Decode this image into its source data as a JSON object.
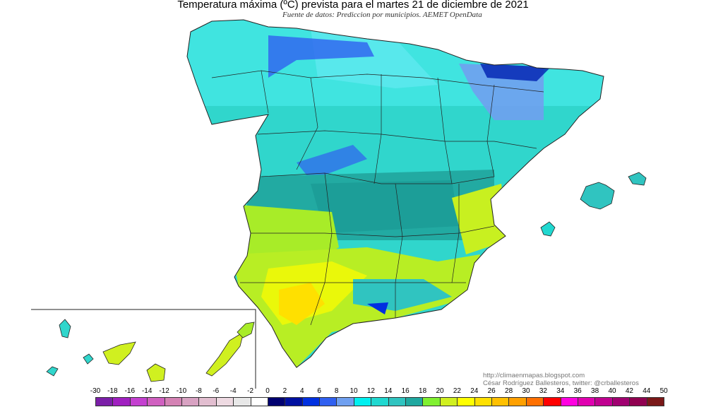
{
  "title": "Temperatura máxima (ºC) prevista para el martes 21 de diciembre de 2021",
  "subtitle": "Fuente de datos: Prediccion por municipios. AEMET OpenData",
  "credits": {
    "url": "http://climaenmapas.blogspot.com",
    "author": "César Rodríguez Ballesteros, twitter: @crballesteros"
  },
  "legend": {
    "labels": [
      "-30",
      "-18",
      "-16",
      "-14",
      "-12",
      "-10",
      "-8",
      "-6",
      "-4",
      "-2",
      "0",
      "2",
      "4",
      "6",
      "8",
      "10",
      "12",
      "14",
      "16",
      "18",
      "20",
      "22",
      "24",
      "26",
      "28",
      "30",
      "32",
      "34",
      "36",
      "38",
      "40",
      "42",
      "44",
      "50"
    ],
    "colors": [
      "#7b1fa8",
      "#a020c0",
      "#c440d0",
      "#d060c0",
      "#d482b4",
      "#d8a2c2",
      "#e2bed0",
      "#eedae2",
      "#e8e8e8",
      "#ffffff",
      "#000070",
      "#0010a0",
      "#0030e0",
      "#3060f0",
      "#70a0f0",
      "#00f0f0",
      "#20d8d0",
      "#30c4c0",
      "#20a8a0",
      "#80f030",
      "#d0f020",
      "#ffff00",
      "#ffe000",
      "#ffc000",
      "#ffa000",
      "#ff7000",
      "#ff0000",
      "#ff00e0",
      "#e000b0",
      "#c00090",
      "#a00070",
      "#900050",
      "#7a1818"
    ]
  },
  "regions": {
    "north_max_c": "10-14",
    "pyrenees_min_c": "2-8",
    "center_c": "14-18",
    "southwest_c": "20-24"
  }
}
